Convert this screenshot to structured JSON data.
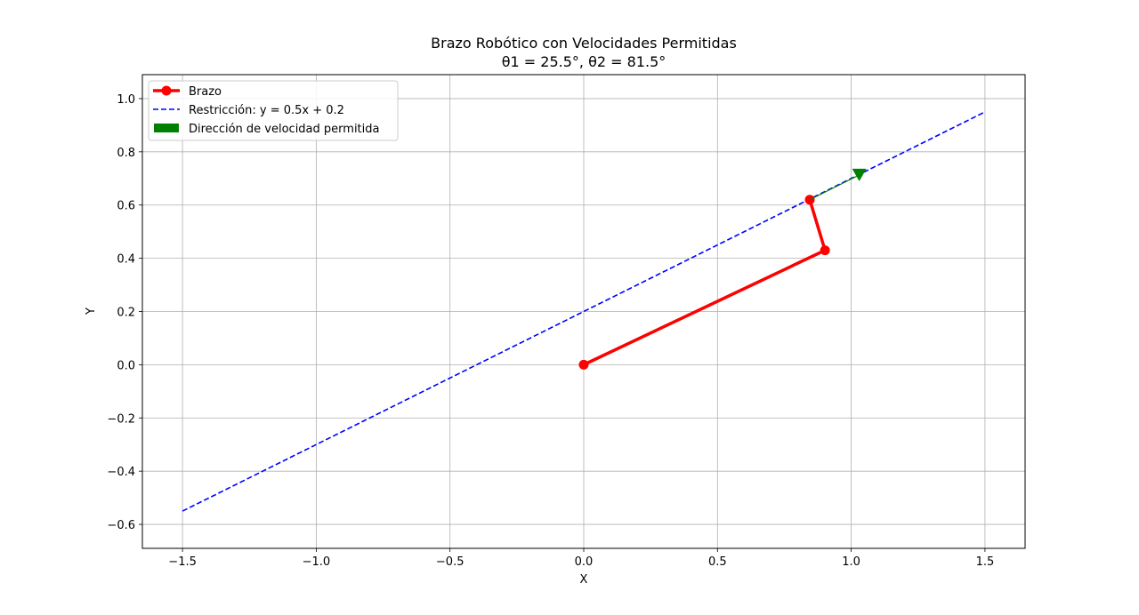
{
  "chart_data": {
    "type": "line",
    "title": "Brazo Robótico con Velocidades Permitidas",
    "subtitle": "θ1 = 25.5°, θ2 = 81.5°",
    "xlabel": "X",
    "ylabel": "Y",
    "xlim": [
      -1.65,
      1.65
    ],
    "ylim": [
      -0.69,
      1.09
    ],
    "xticks": [
      -1.5,
      -1.0,
      -0.5,
      0.0,
      0.5,
      1.0,
      1.5
    ],
    "xtick_labels": [
      "−1.5",
      "−1.0",
      "−0.5",
      "0.0",
      "0.5",
      "1.0",
      "1.5"
    ],
    "yticks": [
      -0.6,
      -0.4,
      -0.2,
      0.0,
      0.2,
      0.4,
      0.6,
      0.8,
      1.0
    ],
    "ytick_labels": [
      "−0.6",
      "−0.4",
      "−0.2",
      "0.0",
      "0.2",
      "0.4",
      "0.6",
      "0.8",
      "1.0"
    ],
    "grid": true,
    "legend_position": "top-left",
    "series": [
      {
        "name": "Brazo",
        "kind": "line-markers",
        "color": "#ff0000",
        "x": [
          0.0,
          0.902,
          0.845
        ],
        "y": [
          0.0,
          0.43,
          0.62
        ]
      },
      {
        "name": "Restricción: y = 0.5x + 0.2",
        "kind": "dashed-line",
        "color": "#0000ff",
        "x": [
          -1.5,
          1.5
        ],
        "y": [
          -0.55,
          0.95
        ]
      },
      {
        "name": "Dirección de velocidad permitida",
        "kind": "arrow",
        "color": "#008000",
        "x": [
          0.845,
          1.03
        ],
        "y": [
          0.62,
          0.713
        ]
      }
    ]
  }
}
